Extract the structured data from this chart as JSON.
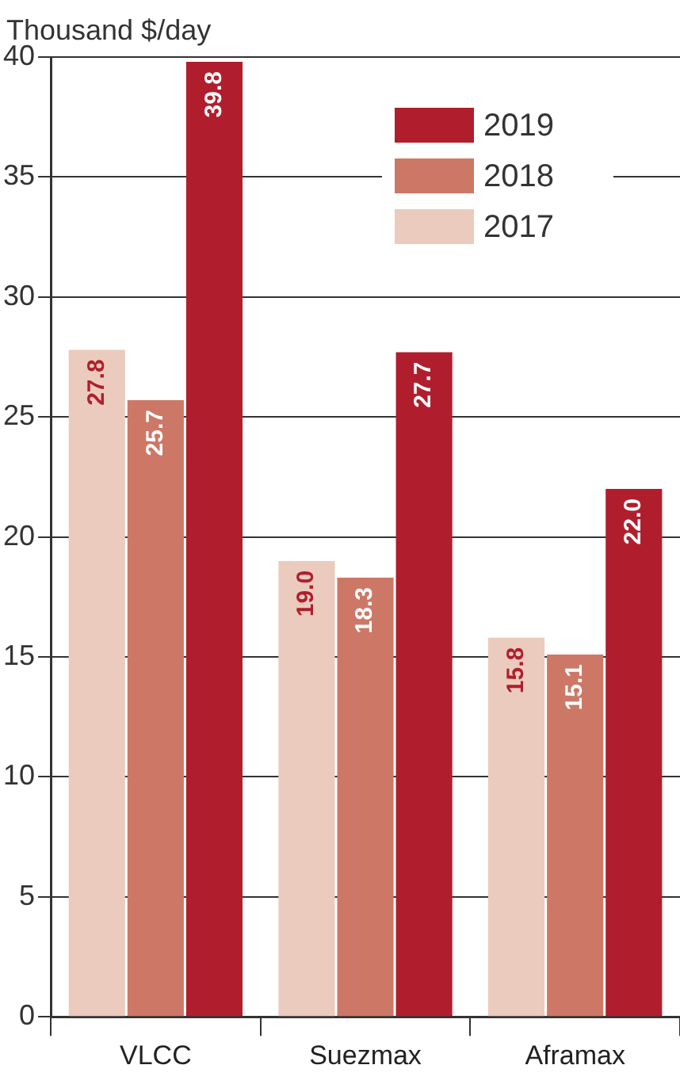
{
  "chart_data": {
    "type": "bar",
    "ylabel": "Thousand $/day",
    "categories": [
      "VLCC",
      "Suezmax",
      "Aframax"
    ],
    "series": [
      {
        "name": "2017",
        "color": "#ebcbbd",
        "values": [
          27.8,
          19.0,
          15.8
        ],
        "value_labels": [
          "27.8",
          "19.0",
          "15.8"
        ]
      },
      {
        "name": "2018",
        "color": "#cd7866",
        "values": [
          25.7,
          18.3,
          15.1
        ],
        "value_labels": [
          "25.7",
          "18.3",
          "15.1"
        ]
      },
      {
        "name": "2019",
        "color": "#b01e2e",
        "values": [
          39.8,
          27.7,
          22.0
        ],
        "value_labels": [
          "39.8",
          "27.7",
          "22.0"
        ]
      }
    ],
    "ylim": [
      0,
      40
    ],
    "yticks": [
      0,
      5,
      10,
      15,
      20,
      25,
      30,
      35,
      40
    ],
    "grid": "y",
    "legend": "top right"
  }
}
